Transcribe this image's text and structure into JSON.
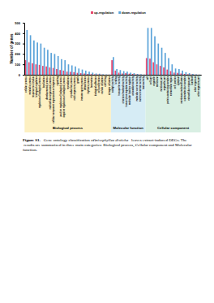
{
  "chart_data": {
    "type": "bar",
    "y_label": "Number of genes",
    "categories": [
      "cellular process",
      "metabolic process",
      "response to stimulus",
      "biological regulation",
      "regulation of biological process",
      "localization",
      "developmental process",
      "multicellular organismal process",
      "cellular component organization or biogenesis",
      "signaling",
      "positive regulation of biological process",
      "negative regulation of biological process",
      "reproduction",
      "reproductive process",
      "multi-organism process",
      "growth",
      "immune system process",
      "detoxification",
      "rhythmic process",
      "locomotion",
      "biological adhesion",
      "cell proliferation",
      "carbon utilization",
      "cell killing",
      "nitrogen utilization",
      "catalytic activity",
      "binding",
      "transporter activity",
      "structural molecule activity",
      "transcription regulator activity",
      "molecular function regulator",
      "antioxidant activity",
      "molecular carrier activity",
      "nutrient reservoir activity",
      "toxin activity",
      "cell",
      "cell part",
      "organelle",
      "membrane",
      "membrane part",
      "organelle part",
      "protein-containing complex",
      "extracellular region",
      "cell junction",
      "symplast",
      "membrane-enclosed lumen",
      "supramolecular complex",
      "extracellular region part",
      "nucleoid",
      "other organism",
      "other organism part"
    ],
    "series": [
      {
        "name": "up-regulation",
        "color": "#e8476f",
        "values": [
          140,
          120,
          110,
          100,
          95,
          85,
          80,
          70,
          65,
          55,
          45,
          40,
          30,
          28,
          25,
          18,
          15,
          12,
          8,
          6,
          4,
          3,
          2,
          1,
          1,
          140,
          40,
          20,
          12,
          15,
          10,
          8,
          4,
          2,
          1,
          160,
          155,
          120,
          100,
          85,
          70,
          50,
          35,
          20,
          18,
          12,
          8,
          5,
          3,
          2,
          1
        ]
      },
      {
        "name": "down-regulation",
        "color": "#5ba3d9",
        "values": [
          430,
          380,
          330,
          310,
          300,
          260,
          240,
          210,
          200,
          180,
          150,
          140,
          100,
          90,
          80,
          60,
          50,
          40,
          30,
          20,
          12,
          10,
          5,
          3,
          2,
          170,
          55,
          45,
          35,
          30,
          20,
          15,
          8,
          5,
          2,
          450,
          450,
          370,
          300,
          260,
          210,
          160,
          100,
          60,
          55,
          40,
          25,
          15,
          8,
          4,
          2
        ]
      }
    ],
    "groups": [
      {
        "label": "Biological process",
        "start": 0,
        "end": 24,
        "color": "#fdf0c2"
      },
      {
        "label": "Molecular function",
        "start": 25,
        "end": 34,
        "color": "#d6ecf5"
      },
      {
        "label": "Cellular component",
        "start": 35,
        "end": 50,
        "color": "#d9efe3"
      }
    ],
    "ylim": [
      0,
      500
    ],
    "yticks": [
      0,
      100,
      200,
      300,
      400,
      500
    ],
    "grid": false,
    "legend": "top"
  },
  "caption": {
    "label": "Figure S1.",
    "before": " Gene ontology classification of ",
    "species": "Anisophyllea disticha",
    "after": " leaves extract-induced DEGs. The results are summarized in three main categories: Biological process, Cellular component and Molecular function."
  }
}
